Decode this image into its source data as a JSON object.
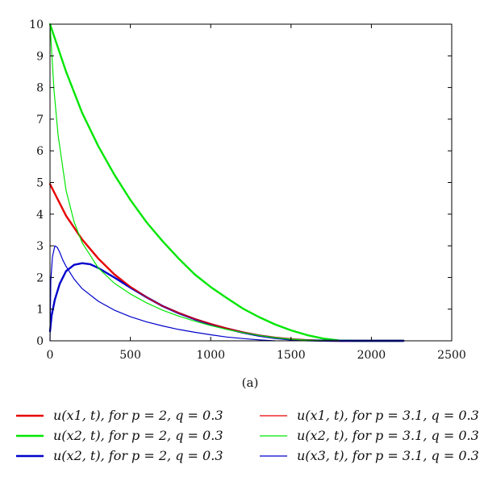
{
  "chart_data": {
    "type": "line",
    "title": "",
    "xlabel": "",
    "ylabel": "",
    "caption": "(a)",
    "xlim": [
      0,
      2500
    ],
    "ylim": [
      0,
      10
    ],
    "xticks": [
      0,
      500,
      1000,
      1500,
      2000,
      2500
    ],
    "yticks": [
      0,
      1,
      2,
      3,
      4,
      5,
      6,
      7,
      8,
      9,
      10
    ],
    "grid": false,
    "legend_position": "bottom",
    "series": [
      {
        "name": "u(x1, t), for p = 2, q = 0.3",
        "color": "#e60000",
        "width": "thick",
        "x": [
          0,
          100,
          200,
          300,
          400,
          500,
          600,
          700,
          800,
          900,
          1000,
          1100,
          1200,
          1300,
          1400,
          1500,
          1600,
          1700,
          1800,
          1900,
          2000,
          2100,
          2200
        ],
        "y": [
          4.95,
          3.95,
          3.2,
          2.6,
          2.1,
          1.7,
          1.38,
          1.1,
          0.88,
          0.69,
          0.53,
          0.39,
          0.27,
          0.17,
          0.1,
          0.05,
          0.02,
          0.005,
          0,
          0,
          0,
          0,
          0
        ]
      },
      {
        "name": "u(x2, t), for p = 2, q = 0.3",
        "color": "#00e600",
        "width": "thick",
        "x": [
          0,
          100,
          200,
          300,
          400,
          500,
          600,
          700,
          800,
          900,
          1000,
          1100,
          1200,
          1300,
          1400,
          1500,
          1600,
          1700,
          1800,
          1900,
          2000,
          2100,
          2200
        ],
        "y": [
          10,
          8.5,
          7.2,
          6.15,
          5.25,
          4.45,
          3.75,
          3.15,
          2.6,
          2.1,
          1.7,
          1.35,
          1.02,
          0.75,
          0.52,
          0.33,
          0.18,
          0.07,
          0.01,
          0,
          0,
          0,
          0
        ]
      },
      {
        "name": "u(x2, t), for p = 2, q = 0.3",
        "color": "#0000cc",
        "width": "thick",
        "x": [
          0,
          10,
          30,
          60,
          100,
          150,
          200,
          250,
          300,
          400,
          500,
          600,
          700,
          800,
          900,
          1000,
          1100,
          1200,
          1300,
          1400,
          1500,
          1600,
          1700,
          1800,
          1900,
          2000,
          2100,
          2200
        ],
        "y": [
          0.3,
          0.8,
          1.3,
          1.8,
          2.2,
          2.4,
          2.45,
          2.42,
          2.3,
          2.0,
          1.68,
          1.38,
          1.1,
          0.87,
          0.68,
          0.52,
          0.38,
          0.26,
          0.16,
          0.09,
          0.04,
          0.015,
          0.004,
          0,
          0,
          0,
          0,
          0
        ]
      },
      {
        "name": "u(x1, t), for p = 3.1, q = 0.3",
        "color": "#e60000",
        "width": "thin",
        "x": [
          0,
          100,
          200,
          300,
          400,
          500,
          600,
          700,
          800,
          900,
          1000,
          1100,
          1200,
          1300,
          1400,
          1500,
          1600,
          1700,
          1800
        ],
        "y": [
          4.95,
          3.95,
          3.2,
          2.6,
          2.1,
          1.7,
          1.38,
          1.1,
          0.88,
          0.69,
          0.53,
          0.39,
          0.27,
          0.17,
          0.1,
          0.05,
          0.02,
          0.005,
          0
        ]
      },
      {
        "name": "u(x2, t), for p = 3.1, q = 0.3",
        "color": "#00e600",
        "width": "thin",
        "x": [
          0,
          25,
          50,
          100,
          150,
          200,
          300,
          400,
          500,
          600,
          700,
          800,
          900,
          1000,
          1100,
          1200,
          1300,
          1400,
          1500,
          1600,
          1700,
          1800
        ],
        "y": [
          10,
          7.9,
          6.5,
          4.75,
          3.75,
          3.1,
          2.3,
          1.82,
          1.48,
          1.2,
          0.97,
          0.78,
          0.62,
          0.48,
          0.36,
          0.26,
          0.17,
          0.1,
          0.05,
          0.02,
          0.005,
          0
        ]
      },
      {
        "name": "u(x3, t), for p = 3.1, q = 0.3",
        "color": "#0000cc",
        "width": "thin",
        "x": [
          0,
          5,
          15,
          30,
          45,
          60,
          80,
          100,
          150,
          200,
          300,
          400,
          500,
          600,
          700,
          800,
          900,
          1000,
          1100,
          1200,
          1300,
          1400
        ],
        "y": [
          0,
          1.9,
          2.65,
          3.0,
          2.95,
          2.8,
          2.55,
          2.35,
          1.95,
          1.65,
          1.25,
          0.97,
          0.76,
          0.6,
          0.47,
          0.36,
          0.27,
          0.19,
          0.12,
          0.07,
          0.03,
          0
        ]
      }
    ]
  },
  "legend": [
    {
      "label": "u(x1, t), for p = 2, q = 0.3",
      "color": "#e60000",
      "width": "thick"
    },
    {
      "label": "u(x1, t), for p = 3.1, q = 0.3",
      "color": "#e60000",
      "width": "thin"
    },
    {
      "label": "u(x2, t), for p = 2, q = 0.3",
      "color": "#00e600",
      "width": "thick"
    },
    {
      "label": "u(x2, t), for p = 3.1, q = 0.3",
      "color": "#00e600",
      "width": "thin"
    },
    {
      "label": "u(x2, t), for p = 2, q = 0.3",
      "color": "#0000cc",
      "width": "thick"
    },
    {
      "label": "u(x3, t), for p = 3.1, q = 0.3",
      "color": "#0000cc",
      "width": "thin"
    }
  ]
}
